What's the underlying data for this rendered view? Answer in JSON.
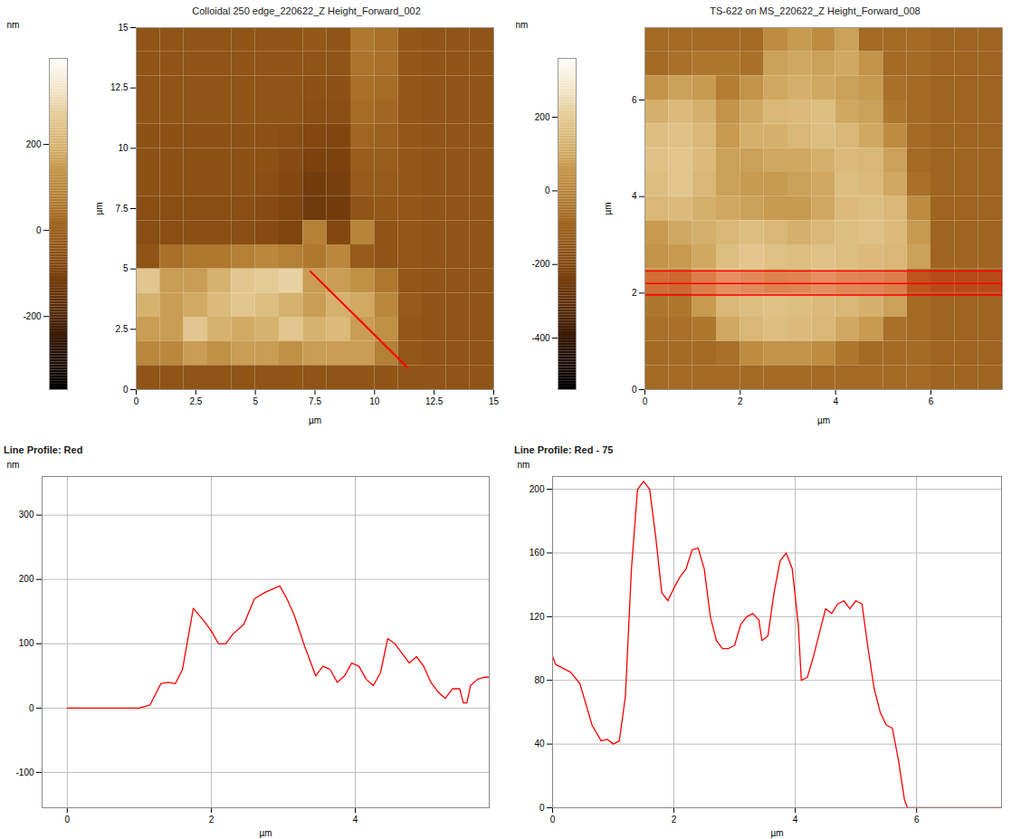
{
  "chart_data": [
    {
      "type": "heatmap",
      "title": "Colloidal 250 edge_220622_Z Height_Forward_002",
      "x_label": "µm",
      "y_label": "µm",
      "xlim": [
        0,
        15
      ],
      "ylim": [
        0,
        15
      ],
      "xticks": [
        0,
        2.5,
        5,
        7.5,
        10,
        12.5,
        15
      ],
      "yticks": [
        0,
        2.5,
        5,
        7.5,
        10,
        12.5,
        15
      ],
      "z": [
        [
          -40,
          -40,
          -40,
          -40,
          -40,
          -40,
          -40,
          -30,
          -40,
          60,
          40,
          -30,
          -40,
          -40,
          -40
        ],
        [
          -40,
          -40,
          -40,
          -40,
          -40,
          -40,
          -40,
          -40,
          -40,
          50,
          40,
          -30,
          -40,
          -40,
          -40
        ],
        [
          -40,
          -40,
          -40,
          -40,
          -40,
          -40,
          -40,
          -50,
          -50,
          40,
          30,
          -30,
          -40,
          -40,
          -40
        ],
        [
          -40,
          -40,
          -40,
          -40,
          -40,
          -40,
          -40,
          -60,
          -60,
          30,
          20,
          -30,
          -40,
          -40,
          -40
        ],
        [
          -50,
          -50,
          -50,
          -50,
          -50,
          -50,
          -60,
          -80,
          -90,
          10,
          0,
          -30,
          -40,
          -40,
          -40
        ],
        [
          -50,
          -50,
          -50,
          -50,
          -50,
          -50,
          -70,
          -100,
          -100,
          -10,
          -10,
          -30,
          -40,
          -40,
          -40
        ],
        [
          -50,
          -50,
          -50,
          -50,
          -50,
          -60,
          -80,
          -120,
          -110,
          -20,
          -20,
          -30,
          -40,
          -40,
          -40
        ],
        [
          -60,
          -60,
          -60,
          -60,
          -60,
          -70,
          -90,
          -130,
          -120,
          -40,
          -30,
          -30,
          -40,
          -40,
          -40
        ],
        [
          -60,
          -60,
          -60,
          -60,
          -60,
          -70,
          -90,
          80,
          -80,
          90,
          -40,
          -30,
          -40,
          -40,
          -40
        ],
        [
          -40,
          40,
          60,
          60,
          80,
          100,
          80,
          60,
          100,
          -20,
          -40,
          -30,
          -40,
          -40,
          -40
        ],
        [
          250,
          150,
          150,
          200,
          250,
          260,
          280,
          150,
          150,
          120,
          60,
          -30,
          -40,
          -40,
          -40
        ],
        [
          200,
          150,
          180,
          220,
          250,
          230,
          200,
          150,
          200,
          180,
          100,
          -20,
          -40,
          -40,
          -40
        ],
        [
          150,
          150,
          250,
          200,
          180,
          200,
          250,
          200,
          220,
          150,
          120,
          -30,
          -40,
          -40,
          -40
        ],
        [
          100,
          100,
          150,
          120,
          150,
          150,
          120,
          150,
          150,
          150,
          80,
          -30,
          -40,
          -40,
          -40
        ],
        [
          -40,
          -40,
          -40,
          -40,
          -40,
          -40,
          -40,
          -40,
          -40,
          -40,
          -40,
          -40,
          -40,
          -40,
          -40
        ]
      ],
      "colorbar": {
        "label": "nm",
        "range": [
          -370,
          400
        ],
        "ticks": [
          -200,
          0,
          200
        ],
        "colors": [
          "#000000",
          "#3a1a05",
          "#7a3e0a",
          "#a0641e",
          "#c89a4a",
          "#e8d09a",
          "#ffffff"
        ]
      },
      "profile_line": {
        "x": [
          7.3,
          11.4
        ],
        "y": [
          4.9,
          0.9
        ],
        "color": "#ff0000"
      }
    },
    {
      "type": "heatmap",
      "title": "TS-622 on MS_220622_Z Height_Forward_008",
      "x_label": "µm",
      "y_label": "µm",
      "xlim": [
        0,
        7.5
      ],
      "ylim": [
        0,
        7.5
      ],
      "xticks": [
        0,
        2,
        4,
        6
      ],
      "yticks": [
        0,
        2,
        4,
        6
      ],
      "z": [
        [
          -80,
          -80,
          -80,
          -80,
          -80,
          20,
          60,
          20,
          80,
          -80,
          -80,
          -80,
          -100,
          -100,
          -100
        ],
        [
          -80,
          -60,
          -40,
          -40,
          -60,
          80,
          100,
          80,
          100,
          40,
          -80,
          -80,
          -100,
          -100,
          -100
        ],
        [
          40,
          80,
          60,
          -20,
          40,
          100,
          120,
          100,
          80,
          60,
          -60,
          -80,
          -100,
          -100,
          -100
        ],
        [
          120,
          150,
          120,
          40,
          100,
          140,
          150,
          160,
          100,
          80,
          -40,
          -80,
          -100,
          -100,
          -100
        ],
        [
          160,
          170,
          140,
          60,
          120,
          120,
          140,
          160,
          140,
          100,
          20,
          -80,
          -100,
          -100,
          -100
        ],
        [
          170,
          180,
          150,
          80,
          80,
          100,
          100,
          120,
          150,
          140,
          80,
          -80,
          -100,
          -100,
          -100
        ],
        [
          160,
          180,
          140,
          80,
          60,
          60,
          80,
          100,
          160,
          150,
          100,
          -60,
          -100,
          -100,
          -100
        ],
        [
          140,
          150,
          120,
          100,
          80,
          60,
          60,
          100,
          150,
          160,
          140,
          20,
          -100,
          -100,
          -100
        ],
        [
          60,
          100,
          120,
          140,
          160,
          140,
          120,
          140,
          160,
          170,
          150,
          60,
          -100,
          -100,
          -100
        ],
        [
          40,
          60,
          100,
          160,
          180,
          170,
          160,
          170,
          160,
          150,
          140,
          80,
          -100,
          -100,
          -100
        ],
        [
          40,
          20,
          100,
          160,
          140,
          110,
          120,
          160,
          130,
          120,
          100,
          -60,
          -100,
          -100,
          -100
        ],
        [
          -40,
          -40,
          60,
          140,
          160,
          170,
          160,
          150,
          140,
          120,
          80,
          -80,
          -100,
          -100,
          -100
        ],
        [
          -60,
          -60,
          -40,
          100,
          140,
          160,
          150,
          140,
          100,
          60,
          -60,
          -80,
          -100,
          -100,
          -100
        ],
        [
          -80,
          -80,
          -80,
          -60,
          20,
          40,
          40,
          20,
          -40,
          -80,
          -80,
          -80,
          -100,
          -100,
          -100
        ],
        [
          -80,
          -80,
          -80,
          -80,
          -80,
          -80,
          -80,
          -80,
          -80,
          -80,
          -80,
          -80,
          -100,
          -100,
          -100
        ]
      ],
      "colorbar": {
        "label": "nm",
        "range": [
          -540,
          360
        ],
        "ticks": [
          -400,
          -200,
          0,
          200
        ],
        "colors": [
          "#000000",
          "#3a1a05",
          "#7a3e0a",
          "#a0641e",
          "#c89a4a",
          "#e8d09a",
          "#ffffff"
        ]
      },
      "profile_band": {
        "y": 2.2,
        "y_range": [
          1.95,
          2.45
        ],
        "color": "#ff0000"
      }
    },
    {
      "type": "line",
      "title": "Line Profile: Red",
      "x_label": "µm",
      "y_label": "nm",
      "color": "#ff0000",
      "grid": true,
      "xlim": [
        -0.35,
        5.86
      ],
      "ylim": [
        -155,
        360
      ],
      "xticks": [
        0,
        2,
        4
      ],
      "yticks": [
        -100,
        0,
        100,
        200,
        300
      ],
      "x": [
        0,
        0.5,
        1.0,
        1.15,
        1.3,
        1.4,
        1.5,
        1.6,
        1.75,
        1.9,
        2.0,
        2.1,
        2.2,
        2.3,
        2.45,
        2.6,
        2.75,
        2.85,
        2.95,
        3.05,
        3.15,
        3.3,
        3.45,
        3.55,
        3.65,
        3.75,
        3.85,
        3.95,
        4.05,
        4.15,
        4.25,
        4.35,
        4.45,
        4.55,
        4.65,
        4.75,
        4.85,
        4.95,
        5.05,
        5.15,
        5.25,
        5.35,
        5.45,
        5.5,
        5.55,
        5.6,
        5.7,
        5.8,
        5.85
      ],
      "values": [
        0,
        0,
        0,
        5,
        38,
        40,
        38,
        60,
        155,
        135,
        120,
        100,
        100,
        115,
        130,
        170,
        180,
        185,
        190,
        170,
        145,
        95,
        50,
        65,
        60,
        40,
        50,
        70,
        65,
        45,
        35,
        55,
        108,
        100,
        85,
        70,
        80,
        65,
        40,
        25,
        15,
        30,
        30,
        8,
        8,
        35,
        45,
        48,
        48
      ]
    },
    {
      "type": "line",
      "title": "Line Profile: Red  -  75",
      "x_label": "µm",
      "y_label": "nm",
      "color": "#ff0000",
      "grid": true,
      "xlim": [
        0,
        7.4
      ],
      "ylim": [
        0,
        208
      ],
      "xticks": [
        0,
        2,
        4,
        6
      ],
      "yticks": [
        0,
        40,
        80,
        120,
        160,
        200
      ],
      "x": [
        0,
        0.05,
        0.15,
        0.3,
        0.45,
        0.55,
        0.65,
        0.8,
        0.9,
        1.0,
        1.1,
        1.2,
        1.3,
        1.4,
        1.5,
        1.6,
        1.7,
        1.8,
        1.9,
        2.0,
        2.1,
        2.2,
        2.3,
        2.4,
        2.5,
        2.6,
        2.7,
        2.8,
        2.9,
        3.0,
        3.1,
        3.2,
        3.3,
        3.4,
        3.45,
        3.55,
        3.65,
        3.75,
        3.85,
        3.95,
        4.05,
        4.1,
        4.2,
        4.3,
        4.4,
        4.5,
        4.6,
        4.7,
        4.8,
        4.9,
        5.0,
        5.1,
        5.2,
        5.3,
        5.4,
        5.5,
        5.6,
        5.7,
        5.8,
        5.85,
        6.0,
        7.4
      ],
      "values": [
        95,
        90,
        88,
        85,
        78,
        65,
        52,
        42,
        43,
        40,
        42,
        70,
        150,
        200,
        205,
        200,
        170,
        135,
        130,
        138,
        145,
        150,
        162,
        163,
        150,
        120,
        105,
        100,
        100,
        102,
        115,
        120,
        122,
        118,
        105,
        108,
        135,
        155,
        160,
        150,
        115,
        80,
        82,
        95,
        110,
        125,
        122,
        128,
        130,
        125,
        130,
        128,
        100,
        75,
        60,
        52,
        50,
        30,
        5,
        0,
        0,
        0
      ]
    }
  ]
}
